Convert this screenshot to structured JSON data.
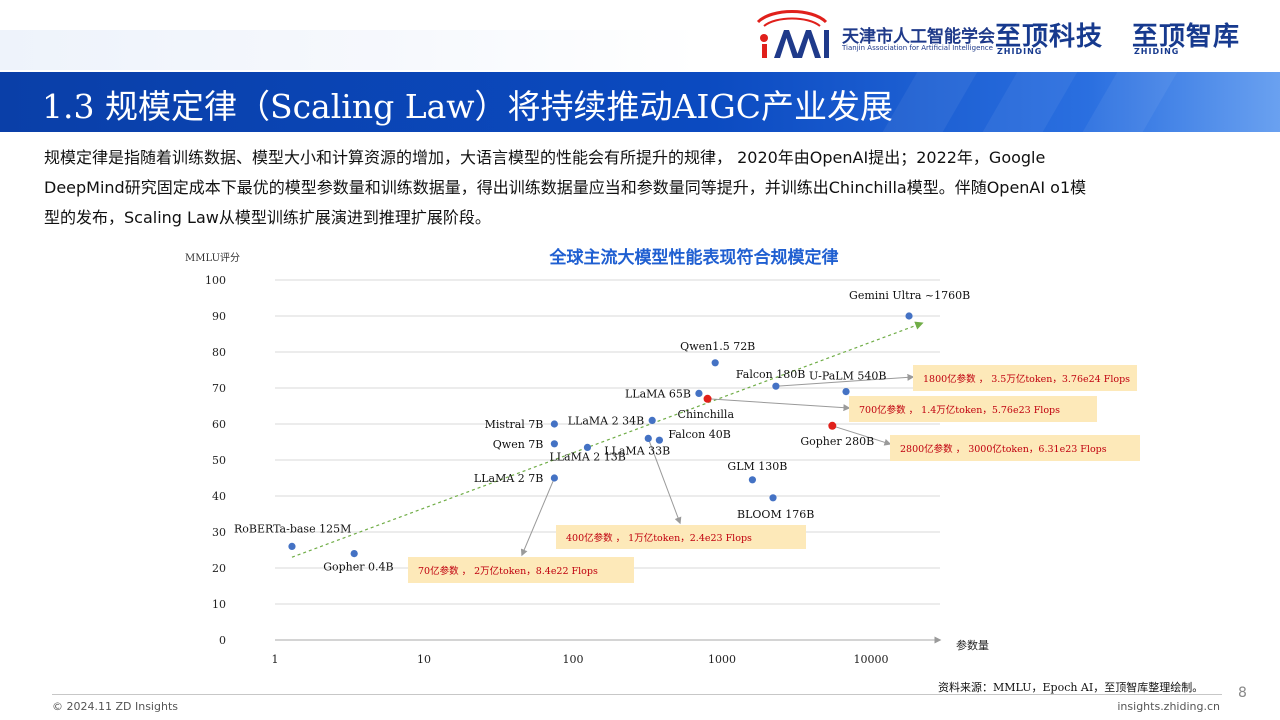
{
  "header": {
    "assoc_cn": "天津市人工智能学会",
    "assoc_en": "Tianjin Association for Artificial Intelligence",
    "brand1": "至顶科技",
    "brand2": "至顶智库",
    "brand_sub": "ZHIDING"
  },
  "title": "1.3 规模定律（Scaling Law）将持续推动AIGC产业发展",
  "intro": [
    "规模定律是指随着训练数据、模型大小和计算资源的增加，大语言模型的性能会有所提升的规律， 2020年由OpenAI提出；2022年，Google",
    "DeepMind研究固定成本下最优的模型参数量和训练数据量，得出训练数据量应当和参数量同等提升，并训练出Chinchilla模型。伴随OpenAI o1模",
    "型的发布，Scaling Law从模型训练扩展演进到推理扩展阶段。"
  ],
  "chart_data": {
    "type": "scatter",
    "title": "全球主流大模型性能表现符合规模定律",
    "xlabel": "参数量",
    "ylabel": "MMLU评分",
    "x_scale": "log",
    "x_ticks": [
      "1",
      "10",
      "100",
      "1000",
      "10000"
    ],
    "y_ticks": [
      "0",
      "10",
      "20",
      "30",
      "40",
      "50",
      "60",
      "70",
      "80",
      "90",
      "100"
    ],
    "ylim": [
      0,
      100
    ],
    "points": [
      {
        "label": "RoBERTa-base 125M",
        "x": 1.3,
        "y": 26
      },
      {
        "label": "Gopher 0.4B",
        "x": 3.4,
        "y": 24
      },
      {
        "label": "LLaMA 2 7B",
        "x": 75,
        "y": 45
      },
      {
        "label": "Mistral 7B",
        "x": 75,
        "y": 60
      },
      {
        "label": "Qwen 7B",
        "x": 75,
        "y": 54.5
      },
      {
        "label": "LLaMA 2 13B",
        "x": 125,
        "y": 53.5
      },
      {
        "label": "LLaMA 2 34B",
        "x": 340,
        "y": 61
      },
      {
        "label": "LLaMA 33B",
        "x": 320,
        "y": 56
      },
      {
        "label": "Falcon 40B",
        "x": 380,
        "y": 55.5
      },
      {
        "label": "LLaMA 65B",
        "x": 700,
        "y": 68.5
      },
      {
        "label": "Chinchilla",
        "x": 800,
        "y": 67,
        "highlight": true
      },
      {
        "label": "Qwen1.5 72B",
        "x": 900,
        "y": 77
      },
      {
        "label": "Falcon 180B",
        "x": 2300,
        "y": 70.5
      },
      {
        "label": "U-PaLM 540B",
        "x": 6800,
        "y": 69
      },
      {
        "label": "Gopher 280B",
        "x": 5500,
        "y": 59.5,
        "highlight": true
      },
      {
        "label": "GLM 130B",
        "x": 1600,
        "y": 44.5
      },
      {
        "label": "BLOOM 176B",
        "x": 2200,
        "y": 39.5
      },
      {
        "label": "Gemini Ultra ~1760B",
        "x": 18000,
        "y": 90
      }
    ],
    "trend_line": {
      "from": {
        "x": 1.3,
        "y": 23
      },
      "to": {
        "x": 22000,
        "y": 88
      }
    },
    "annotations": [
      "1800亿参数 ， 3.5万亿token，3.76e24 Flops",
      "700亿参数 ， 1.4万亿token，5.76e23 Flops",
      "2800亿参数 ， 3000亿token，6.31e23 Flops",
      "400亿参数 ， 1万亿token，2.4e23 Flops",
      "70亿参数 ， 2万亿token，8.4e22 Flops"
    ],
    "colors": {
      "point": "#4472c4",
      "highlight": "#e0201b",
      "trend": "#70ad47",
      "annotation_bg": "#fde9b9",
      "annotation_text": "#c0000e",
      "title": "#1f5fd1"
    }
  },
  "source": "资料来源：MMLU，Epoch AI，至顶智库整理绘制。",
  "footer": {
    "copyright": "© 2024.11 ZD Insights",
    "site": "insights.zhiding.cn",
    "page": "8"
  }
}
